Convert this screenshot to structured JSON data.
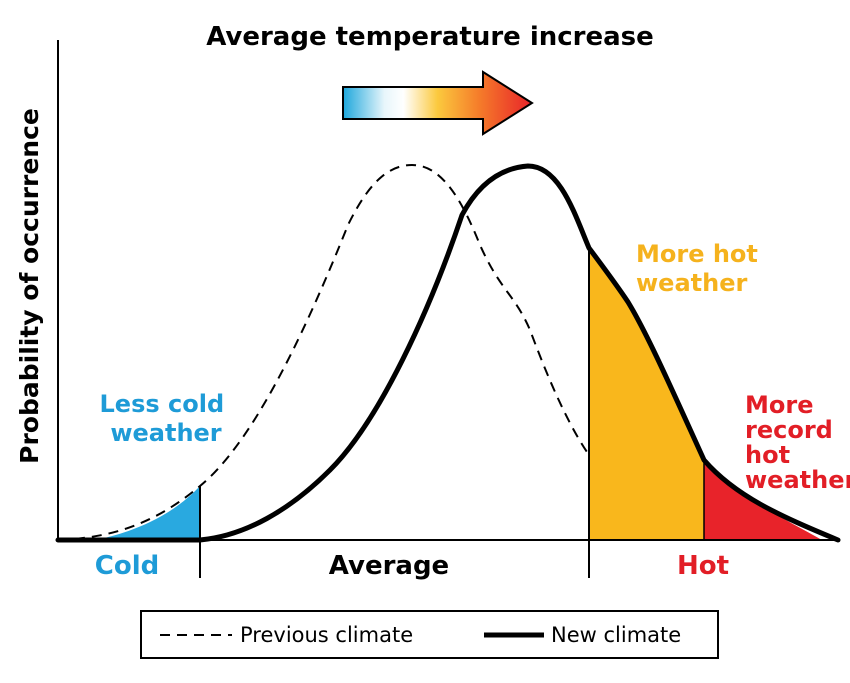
{
  "title": "Average temperature increase",
  "y_axis_label": "Probability of occurrence",
  "x_regions": {
    "cold": "Cold",
    "average": "Average",
    "hot": "Hot"
  },
  "annotations": {
    "less_cold": [
      "Less cold",
      "weather"
    ],
    "more_hot": [
      "More hot",
      "weather"
    ],
    "record_hot": [
      "More",
      "record",
      "hot",
      "weather"
    ]
  },
  "legend": {
    "previous": "Previous climate",
    "new": "New climate"
  },
  "colors": {
    "cold": "#29a9e0",
    "hot": "#f9b71c",
    "record_hot": "#e8232a",
    "hot_label": "#f5b21d",
    "record_label": "#e21e26",
    "cold_label": "#1e9bd7",
    "line": "#000000"
  }
}
